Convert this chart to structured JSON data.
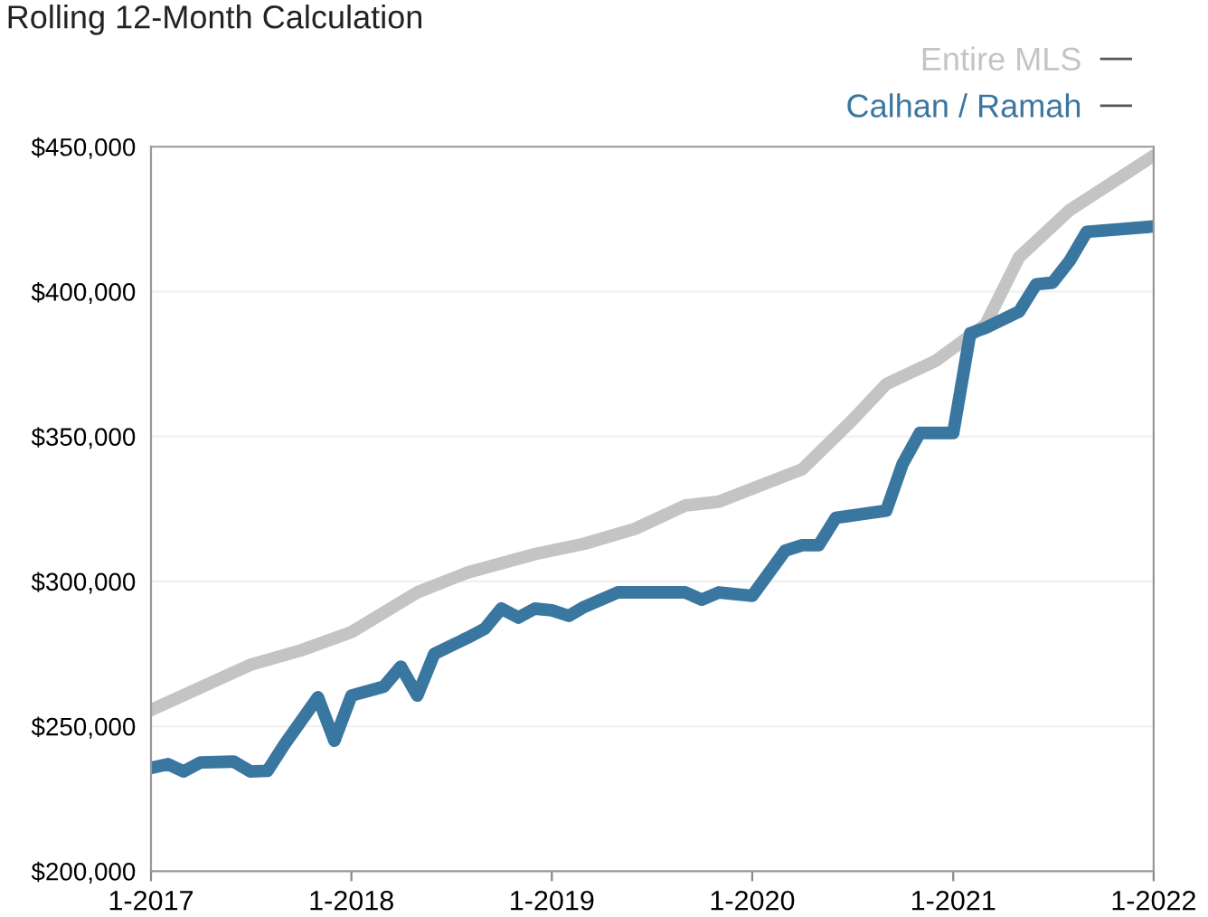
{
  "chart_data": {
    "type": "line",
    "title": "Rolling 12-Month Calculation",
    "series": [
      {
        "name": "Entire MLS",
        "color": "#c4c4c4",
        "x": [
          "2017-01",
          "2017-07",
          "2017-10",
          "2018-01",
          "2018-05",
          "2018-08",
          "2018-12",
          "2019-03",
          "2019-06",
          "2019-09",
          "2019-11",
          "2020-04",
          "2020-07",
          "2020-09",
          "2020-12",
          "2021-03",
          "2021-05",
          "2021-08",
          "2022-01"
        ],
        "values": [
          255600,
          271200,
          276200,
          282500,
          296200,
          303100,
          309400,
          313000,
          318100,
          326200,
          327500,
          338700,
          355600,
          368100,
          376200,
          388700,
          411900,
          428100,
          446900
        ]
      },
      {
        "name": "Calhan / Ramah",
        "color": "#3a77a0",
        "x": [
          "2017-01",
          "2017-02",
          "2017-03",
          "2017-04",
          "2017-06",
          "2017-07",
          "2017-08",
          "2017-09",
          "2017-11",
          "2017-12",
          "2018-01",
          "2018-03",
          "2018-04",
          "2018-05",
          "2018-06",
          "2018-08",
          "2018-09",
          "2018-10",
          "2018-11",
          "2018-12",
          "2019-01",
          "2019-02",
          "2019-03",
          "2019-05",
          "2019-09",
          "2019-10",
          "2019-11",
          "2020-01",
          "2020-03",
          "2020-04",
          "2020-05",
          "2020-06",
          "2020-09",
          "2020-10",
          "2020-11",
          "2021-01",
          "2021-02",
          "2021-03",
          "2021-05",
          "2021-06",
          "2021-07",
          "2021-08",
          "2021-09",
          "2022-01"
        ],
        "values": [
          235600,
          236900,
          234400,
          237500,
          237800,
          234400,
          234600,
          243700,
          260000,
          245000,
          260600,
          263700,
          270600,
          260600,
          275000,
          280600,
          283700,
          290600,
          287500,
          290600,
          290000,
          288100,
          291200,
          296200,
          296200,
          293700,
          296200,
          295000,
          310600,
          312500,
          312500,
          321900,
          324400,
          340600,
          351200,
          351200,
          385600,
          387500,
          393100,
          402500,
          403100,
          410600,
          420600,
          422500
        ]
      }
    ],
    "xlim": [
      "2017-01",
      "2022-01"
    ],
    "xticks": [
      {
        "value": "2017-01",
        "label": "1-2017"
      },
      {
        "value": "2018-01",
        "label": "1-2018"
      },
      {
        "value": "2019-01",
        "label": "1-2019"
      },
      {
        "value": "2020-01",
        "label": "1-2020"
      },
      {
        "value": "2021-01",
        "label": "1-2021"
      },
      {
        "value": "2022-01",
        "label": "1-2022"
      }
    ],
    "ylim": [
      200000,
      450000
    ],
    "yticks": [
      {
        "value": 200000,
        "label": "$200,000"
      },
      {
        "value": 250000,
        "label": "$250,000"
      },
      {
        "value": 300000,
        "label": "$300,000"
      },
      {
        "value": 350000,
        "label": "$350,000"
      },
      {
        "value": 400000,
        "label": "$400,000"
      },
      {
        "value": 450000,
        "label": "$450,000"
      }
    ],
    "grid": "y",
    "legend": "top right",
    "marker": "none",
    "line_style": "solid"
  }
}
